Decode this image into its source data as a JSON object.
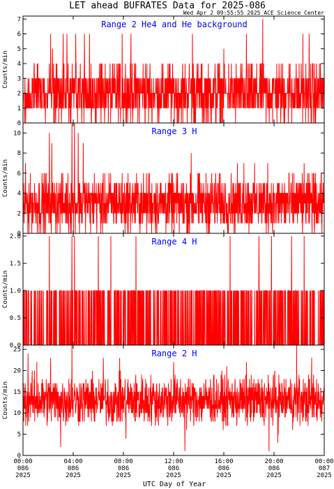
{
  "title": "LET ahead BUFRATES Data for 2025-086",
  "timestamp": "Wed Apr  2 09:55:55 2025 ACE Science Center",
  "xlabel": "UTC Day of Year",
  "colors": {
    "trace": "#ff0000",
    "panel_title": "#0000ff",
    "axis": "#000000"
  },
  "x_ticks": [
    {
      "time": "00:00",
      "doy": "086",
      "year": "2025",
      "hour": 0
    },
    {
      "time": "04:00",
      "doy": "086",
      "year": "2025",
      "hour": 4
    },
    {
      "time": "08:00",
      "doy": "086",
      "year": "2025",
      "hour": 8
    },
    {
      "time": "12:00",
      "doy": "086",
      "year": "2025",
      "hour": 12
    },
    {
      "time": "16:00",
      "doy": "086",
      "year": "2025",
      "hour": 16
    },
    {
      "time": "20:00",
      "doy": "086",
      "year": "2025",
      "hour": 20
    },
    {
      "time": "00:00",
      "doy": "087",
      "year": "2025",
      "hour": 24
    }
  ],
  "chart_data": [
    {
      "type": "line",
      "title": "Range 2 He4 and He background",
      "ylabel": "Counts/min",
      "xlim": [
        0,
        24
      ],
      "ylim": [
        0,
        7.2
      ],
      "y_ticks": [
        "0",
        "1",
        "2",
        "3",
        "4",
        "5",
        "6",
        "7"
      ],
      "sample_minutes": 1,
      "baseline": 2,
      "spread": 1.4,
      "max_value": 7,
      "peaks": [
        {
          "hour": 2.2,
          "value": 6
        },
        {
          "hour": 3.2,
          "value": 6
        },
        {
          "hour": 3.5,
          "value": 6
        },
        {
          "hour": 4.2,
          "value": 6
        },
        {
          "hour": 4.9,
          "value": 6
        },
        {
          "hour": 5.3,
          "value": 6
        },
        {
          "hour": 7.9,
          "value": 6
        },
        {
          "hour": 8.6,
          "value": 6
        },
        {
          "hour": 13.5,
          "value": 6
        },
        {
          "hour": 17.8,
          "value": 6
        },
        {
          "hour": 19.1,
          "value": 7
        },
        {
          "hour": 22.3,
          "value": 6
        },
        {
          "hour": 22.8,
          "value": 6
        }
      ]
    },
    {
      "type": "line",
      "title": "Range 3 H",
      "ylabel": "Counts/min",
      "xlim": [
        0,
        24
      ],
      "ylim": [
        0,
        11
      ],
      "y_ticks": [
        "0",
        "2",
        "4",
        "6",
        "8",
        "10"
      ],
      "sample_minutes": 1,
      "baseline": 3,
      "spread": 2,
      "max_value": 11,
      "peaks": [
        {
          "hour": 2.1,
          "value": 10
        },
        {
          "hour": 2.3,
          "value": 9
        },
        {
          "hour": 3.9,
          "value": 11
        },
        {
          "hour": 4.1,
          "value": 11
        },
        {
          "hour": 4.4,
          "value": 10
        },
        {
          "hour": 4.8,
          "value": 9
        },
        {
          "hour": 13.4,
          "value": 8
        },
        {
          "hour": 17.6,
          "value": 7
        },
        {
          "hour": 19.5,
          "value": 7
        },
        {
          "hour": 23.3,
          "value": 6
        }
      ]
    },
    {
      "type": "line",
      "title": "Range 4 H",
      "ylabel": "Counts/min",
      "xlim": [
        0,
        24
      ],
      "ylim": [
        0,
        2.05
      ],
      "y_ticks": [
        "0.0",
        "0.5",
        "1.0",
        "1.5",
        "2.0"
      ],
      "sample_minutes": 1,
      "baseline": 0,
      "spread": 1,
      "max_value": 2,
      "peaks": [
        {
          "hour": 2.1,
          "value": 2
        },
        {
          "hour": 3.9,
          "value": 2
        },
        {
          "hour": 4.1,
          "value": 2
        },
        {
          "hour": 6.0,
          "value": 2
        },
        {
          "hour": 7.0,
          "value": 2
        },
        {
          "hour": 9.0,
          "value": 2
        },
        {
          "hour": 16.5,
          "value": 2
        },
        {
          "hour": 18.8,
          "value": 2
        },
        {
          "hour": 19.8,
          "value": 2
        },
        {
          "hour": 21.4,
          "value": 2
        },
        {
          "hour": 22.4,
          "value": 2
        }
      ]
    },
    {
      "type": "line",
      "title": "Range 2 H",
      "ylabel": "Counts/min",
      "xlim": [
        0,
        24
      ],
      "ylim": [
        0,
        26
      ],
      "y_ticks": [
        "0",
        "5",
        "10",
        "15",
        "20",
        "25"
      ],
      "sample_minutes": 1,
      "baseline": 13,
      "spread": 4,
      "max_value": 26,
      "peaks": [
        {
          "hour": 0.4,
          "value": 24
        },
        {
          "hour": 1.1,
          "value": 22
        },
        {
          "hour": 2.2,
          "value": 23
        },
        {
          "hour": 3.9,
          "value": 26
        },
        {
          "hour": 6.4,
          "value": 23
        },
        {
          "hour": 7.7,
          "value": 23
        },
        {
          "hour": 12.0,
          "value": 22
        },
        {
          "hour": 17.8,
          "value": 22
        },
        {
          "hour": 21.8,
          "value": 26
        },
        {
          "hour": 23.0,
          "value": 23
        }
      ],
      "dips": [
        {
          "hour": 3.0,
          "value": 2
        },
        {
          "hour": 8.2,
          "value": 4
        },
        {
          "hour": 12.9,
          "value": 1
        },
        {
          "hour": 19.6,
          "value": 1
        },
        {
          "hour": 20.3,
          "value": 3
        }
      ]
    }
  ]
}
